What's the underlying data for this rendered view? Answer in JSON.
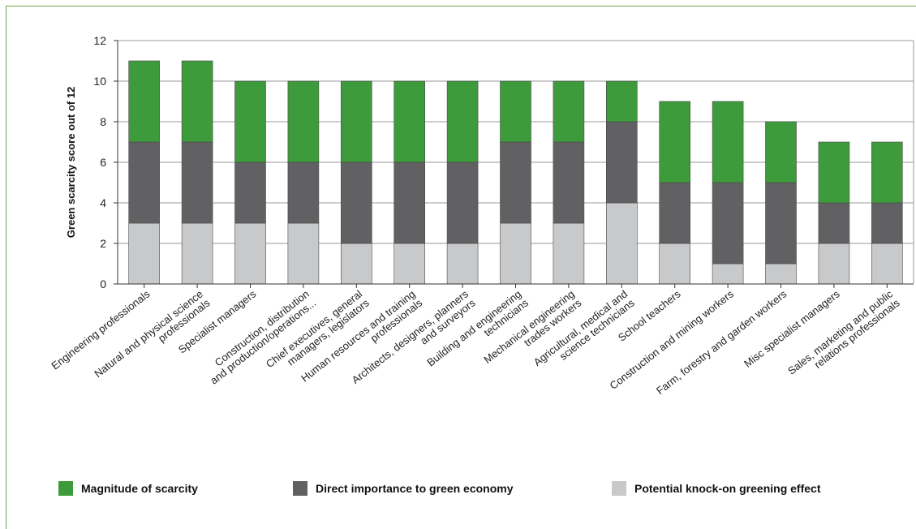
{
  "chart_data": {
    "type": "bar",
    "stacked": true,
    "ylabel": "Green scarcity score out of 12",
    "ylim": [
      0,
      12
    ],
    "yticks": [
      0,
      2,
      4,
      6,
      8,
      10,
      12
    ],
    "grid": true,
    "legend_position": "bottom",
    "categories": [
      [
        "Engineering professionals"
      ],
      [
        "Natural and physical science",
        "professionals"
      ],
      [
        "Specialist managers"
      ],
      [
        "Construction, distribution",
        "and production/operations..."
      ],
      [
        "Chief executives, general",
        "managers, legislators"
      ],
      [
        "Human resources and training",
        "professionals"
      ],
      [
        "Architects, designers, planners",
        "and surveyors"
      ],
      [
        "Building and engineering",
        "technicians"
      ],
      [
        "Mechanical engineering",
        "trades workers"
      ],
      [
        "Agricultural, medical and",
        "science technicians"
      ],
      [
        "School teachers"
      ],
      [
        "Construction and mining workers"
      ],
      [
        "Farm, forestry and garden workers"
      ],
      [
        "Misc specialist managers"
      ],
      [
        "Sales, marketing and public",
        "relations professionals"
      ]
    ],
    "series": [
      {
        "name": "Potential knock-on greening effect",
        "color": "#c8c9cb",
        "values": [
          3,
          3,
          3,
          3,
          2,
          2,
          2,
          3,
          3,
          4,
          2,
          1,
          1,
          2,
          2
        ]
      },
      {
        "name": "Direct importance to green economy",
        "color": "#616163",
        "values": [
          4,
          4,
          3,
          3,
          4,
          4,
          4,
          4,
          4,
          4,
          3,
          4,
          4,
          2,
          2
        ]
      },
      {
        "name": "Magnitude of scarcity",
        "color": "#3e9b3c",
        "values": [
          4,
          4,
          4,
          4,
          4,
          4,
          4,
          3,
          3,
          2,
          4,
          4,
          3,
          3,
          3
        ]
      }
    ],
    "legend": [
      {
        "label": "Magnitude of scarcity",
        "color": "#3e9b3c"
      },
      {
        "label": "Direct importance to green economy",
        "color": "#616163"
      },
      {
        "label": "Potential knock-on greening effect",
        "color": "#c8c9cb"
      }
    ]
  }
}
